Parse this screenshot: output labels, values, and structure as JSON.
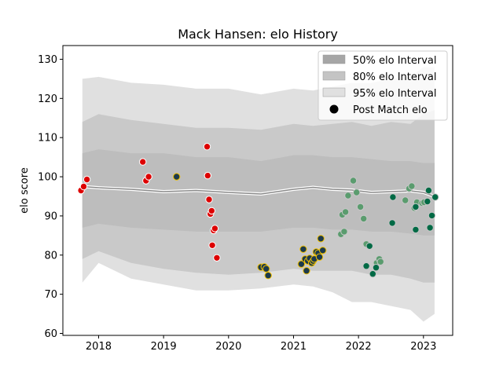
{
  "chart_data": {
    "type": "scatter",
    "title": "Mack Hansen: elo History",
    "xlabel": "",
    "ylabel": "elo score",
    "xlim": [
      2017.45,
      2023.45
    ],
    "ylim": [
      59.5,
      133.5
    ],
    "x_ticks": [
      2018,
      2019,
      2020,
      2021,
      2022,
      2023
    ],
    "x_tick_labels": [
      "2018",
      "2019",
      "2020",
      "2021",
      "2022",
      "2023"
    ],
    "y_ticks": [
      60,
      70,
      80,
      90,
      100,
      110,
      120,
      130
    ],
    "y_tick_labels": [
      "60",
      "70",
      "80",
      "90",
      "100",
      "110",
      "120",
      "130"
    ],
    "grid": false,
    "legend_position": "top-right",
    "legend": [
      {
        "label": "50% elo Interval",
        "kind": "band",
        "color": "#a6a6a6"
      },
      {
        "label": "80% elo Interval",
        "kind": "band",
        "color": "#c4c4c4"
      },
      {
        "label": "95% elo Interval",
        "kind": "band",
        "color": "#e0e0e0"
      },
      {
        "label": "Post Match elo",
        "kind": "marker",
        "color": "#000000"
      }
    ],
    "bands": {
      "x": [
        2017.75,
        2018.0,
        2018.5,
        2019.0,
        2019.5,
        2020.0,
        2020.5,
        2021.0,
        2021.3,
        2021.6,
        2021.9,
        2022.2,
        2022.5,
        2022.8,
        2023.0,
        2023.17
      ],
      "band95_upper": [
        125,
        125.5,
        124,
        123.5,
        122.5,
        122.5,
        121,
        122.5,
        122,
        123,
        124,
        124,
        125,
        125.5,
        128,
        128
      ],
      "band95_lower": [
        73,
        78,
        74,
        72.5,
        71,
        71,
        71.5,
        72.5,
        72,
        70.5,
        68,
        68,
        67,
        66,
        63,
        65
      ],
      "band80_upper": [
        114,
        116,
        114.5,
        113.5,
        112.5,
        112.5,
        112,
        113.5,
        113,
        113.5,
        114,
        113,
        114,
        113.5,
        116,
        117
      ],
      "band80_lower": [
        79,
        81,
        78,
        76.5,
        75.5,
        75,
        75.5,
        76.5,
        76,
        76,
        76,
        75,
        75,
        74,
        73,
        73
      ],
      "band50_upper": [
        106,
        107,
        106,
        106,
        105,
        105,
        104,
        105.5,
        105.5,
        105,
        105,
        104.5,
        104,
        104,
        103.5,
        103.5
      ],
      "band50_lower": [
        87,
        88,
        87,
        86.5,
        86,
        86,
        86,
        87,
        87,
        86.5,
        86.5,
        86,
        86,
        85.5,
        85,
        85
      ],
      "median": [
        97.5,
        97.2,
        96.8,
        96.2,
        96.5,
        96.0,
        95.6,
        96.8,
        97.3,
        96.8,
        96.6,
        96.0,
        96.2,
        96.4,
        96.0,
        95.0
      ]
    },
    "series": [
      {
        "name": "Post Match elo",
        "color": "#dd0000",
        "edge": "#ffffff",
        "points": [
          [
            2017.73,
            96.5
          ],
          [
            2017.77,
            97.5
          ],
          [
            2017.82,
            99.3
          ],
          [
            2018.68,
            103.8
          ],
          [
            2018.73,
            99.0
          ],
          [
            2018.77,
            100.0
          ],
          [
            2019.67,
            107.7
          ],
          [
            2019.68,
            100.3
          ],
          [
            2019.7,
            94.2
          ],
          [
            2019.72,
            90.5
          ],
          [
            2019.74,
            91.3
          ],
          [
            2019.75,
            82.5
          ],
          [
            2019.77,
            86.3
          ],
          [
            2019.79,
            86.8
          ],
          [
            2019.82,
            79.3
          ]
        ]
      },
      {
        "name": "Post Match elo",
        "color": "#1c3a4c",
        "edge": "#f2c100",
        "points": [
          [
            2019.2,
            100.0
          ],
          [
            2020.5,
            76.9
          ],
          [
            2020.55,
            77.0
          ],
          [
            2020.58,
            76.5
          ],
          [
            2020.61,
            74.8
          ],
          [
            2021.12,
            77.7
          ],
          [
            2021.15,
            81.5
          ],
          [
            2021.18,
            79.0
          ],
          [
            2021.2,
            76.0
          ],
          [
            2021.22,
            78.5
          ],
          [
            2021.25,
            79.2
          ],
          [
            2021.28,
            78.0
          ],
          [
            2021.3,
            78.5
          ],
          [
            2021.32,
            79.0
          ],
          [
            2021.35,
            80.8
          ],
          [
            2021.38,
            80.5
          ],
          [
            2021.4,
            79.5
          ],
          [
            2021.42,
            84.2
          ],
          [
            2021.45,
            81.2
          ]
        ]
      },
      {
        "name": "Post Match elo",
        "color": "#5a9c6e",
        "edge": "#c8c8c8",
        "points": [
          [
            2021.73,
            85.3
          ],
          [
            2021.75,
            90.3
          ],
          [
            2021.78,
            86.0
          ],
          [
            2021.8,
            91.0
          ],
          [
            2021.84,
            95.2
          ],
          [
            2021.92,
            99.0
          ],
          [
            2021.97,
            96.0
          ],
          [
            2022.03,
            92.3
          ],
          [
            2022.08,
            89.3
          ],
          [
            2022.12,
            82.8
          ],
          [
            2022.28,
            78.0
          ],
          [
            2022.32,
            79.0
          ],
          [
            2022.34,
            78.3
          ],
          [
            2022.72,
            94.0
          ],
          [
            2022.78,
            97.0
          ],
          [
            2022.82,
            97.6
          ],
          [
            2022.86,
            92.0
          ],
          [
            2022.9,
            93.5
          ],
          [
            2022.98,
            93.3
          ],
          [
            2023.01,
            93.5
          ]
        ]
      },
      {
        "name": "Post Match elo",
        "color": "#006a45",
        "edge": "#c8c8c8",
        "points": [
          [
            2022.12,
            77.2
          ],
          [
            2022.17,
            82.3
          ],
          [
            2022.22,
            75.2
          ],
          [
            2022.27,
            76.8
          ],
          [
            2022.53,
            94.8
          ],
          [
            2022.52,
            88.2
          ],
          [
            2022.88,
            92.3
          ],
          [
            2022.88,
            86.5
          ],
          [
            2023.06,
            93.7
          ],
          [
            2023.08,
            96.5
          ],
          [
            2023.1,
            87.0
          ],
          [
            2023.13,
            90.1
          ],
          [
            2023.18,
            94.8
          ]
        ]
      }
    ]
  }
}
